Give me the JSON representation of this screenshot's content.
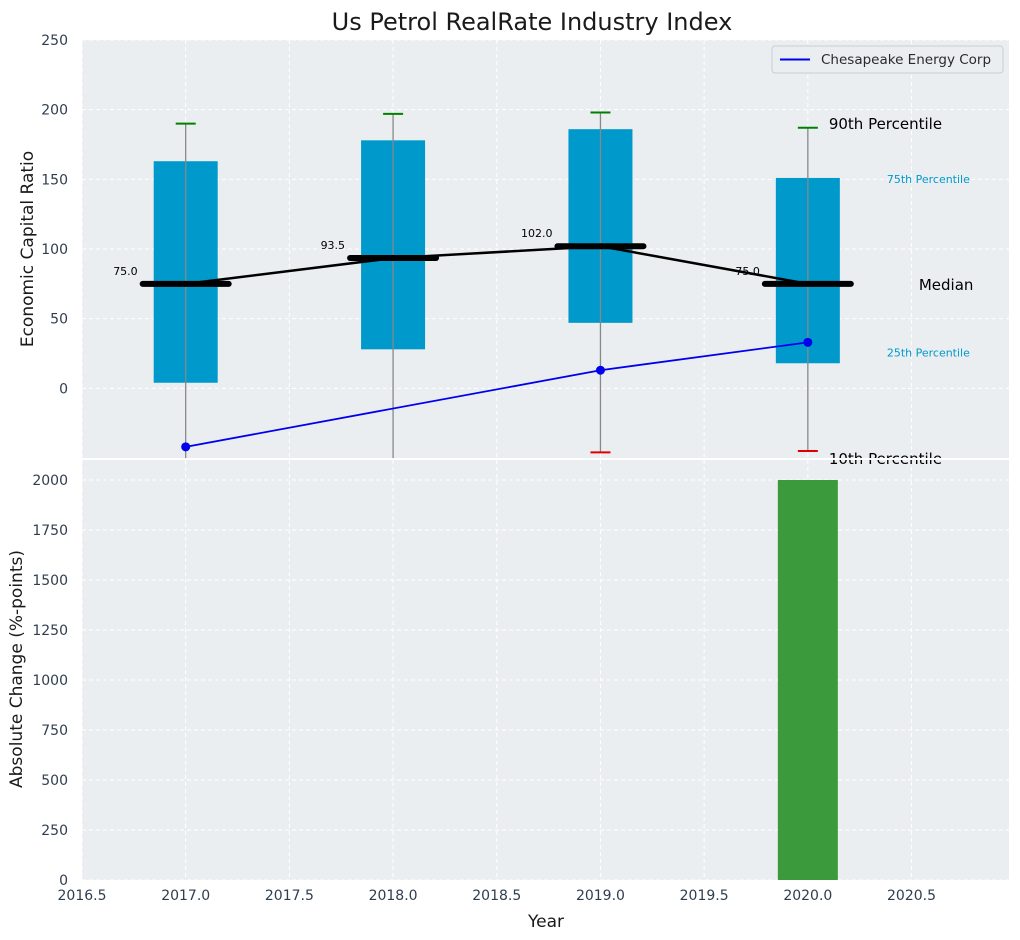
{
  "chart_data": [
    {
      "type": "box",
      "title": "Us Petrol RealRate Industry Index",
      "ylabel": "Economic Capital Ratio",
      "xlim": [
        2016.5,
        2020.97
      ],
      "ylim": [
        -50,
        250
      ],
      "yticks": [
        0,
        50,
        100,
        150,
        200,
        250
      ],
      "grid": true,
      "legend": {
        "position": "top-right",
        "entries": [
          "Chesapeake Energy Corp"
        ]
      },
      "boxes": [
        {
          "year": 2017,
          "p10": -60,
          "p25": 4,
          "median": 75.0,
          "p75": 163,
          "p90": 190,
          "median_label": "75.0"
        },
        {
          "year": 2018,
          "p10": -60,
          "p25": 28,
          "median": 93.5,
          "p75": 178,
          "p90": 197,
          "median_label": "93.5"
        },
        {
          "year": 2019,
          "p10": -46,
          "p25": 47,
          "median": 102.0,
          "p75": 186,
          "p90": 198,
          "median_label": "102.0"
        },
        {
          "year": 2020,
          "p10": -45,
          "p25": 18,
          "median": 75.0,
          "p75": 151,
          "p90": 187,
          "median_label": "75.0"
        }
      ],
      "median_line": {
        "x": [
          2017,
          2018,
          2019,
          2020
        ],
        "y": [
          75.0,
          93.5,
          102.0,
          75.0
        ]
      },
      "series": [
        {
          "name": "Chesapeake Energy Corp",
          "x": [
            2017,
            2019,
            2020
          ],
          "y": [
            -42,
            13,
            33
          ]
        }
      ],
      "annotations": {
        "p90": "90th Percentile",
        "p75": "75th Percentile",
        "median": "Median",
        "p25": "25th Percentile",
        "p10": "10th Percentile"
      },
      "colors": {
        "box": "#0099cc",
        "median": "#000000",
        "series": "#0000ee",
        "p90_cap": "#008000",
        "p10_cap": "#e00000",
        "whisker": "#888888",
        "panel_bg": "#eaeef0"
      }
    },
    {
      "type": "bar",
      "xlabel": "Year",
      "ylabel": "Absolute Change (%-points)",
      "xlim": [
        2016.5,
        2020.97
      ],
      "ylim": [
        0,
        2100
      ],
      "xticks": [
        "2016.5",
        "2017.0",
        "2017.5",
        "2018.0",
        "2018.5",
        "2019.0",
        "2019.5",
        "2020.0",
        "2020.5"
      ],
      "yticks": [
        0,
        250,
        500,
        750,
        1000,
        1250,
        1500,
        1750,
        2000
      ],
      "grid": true,
      "bars": [
        {
          "x": 2020,
          "value": 2000
        }
      ],
      "colors": {
        "bar": "#3a9a3c"
      }
    }
  ]
}
